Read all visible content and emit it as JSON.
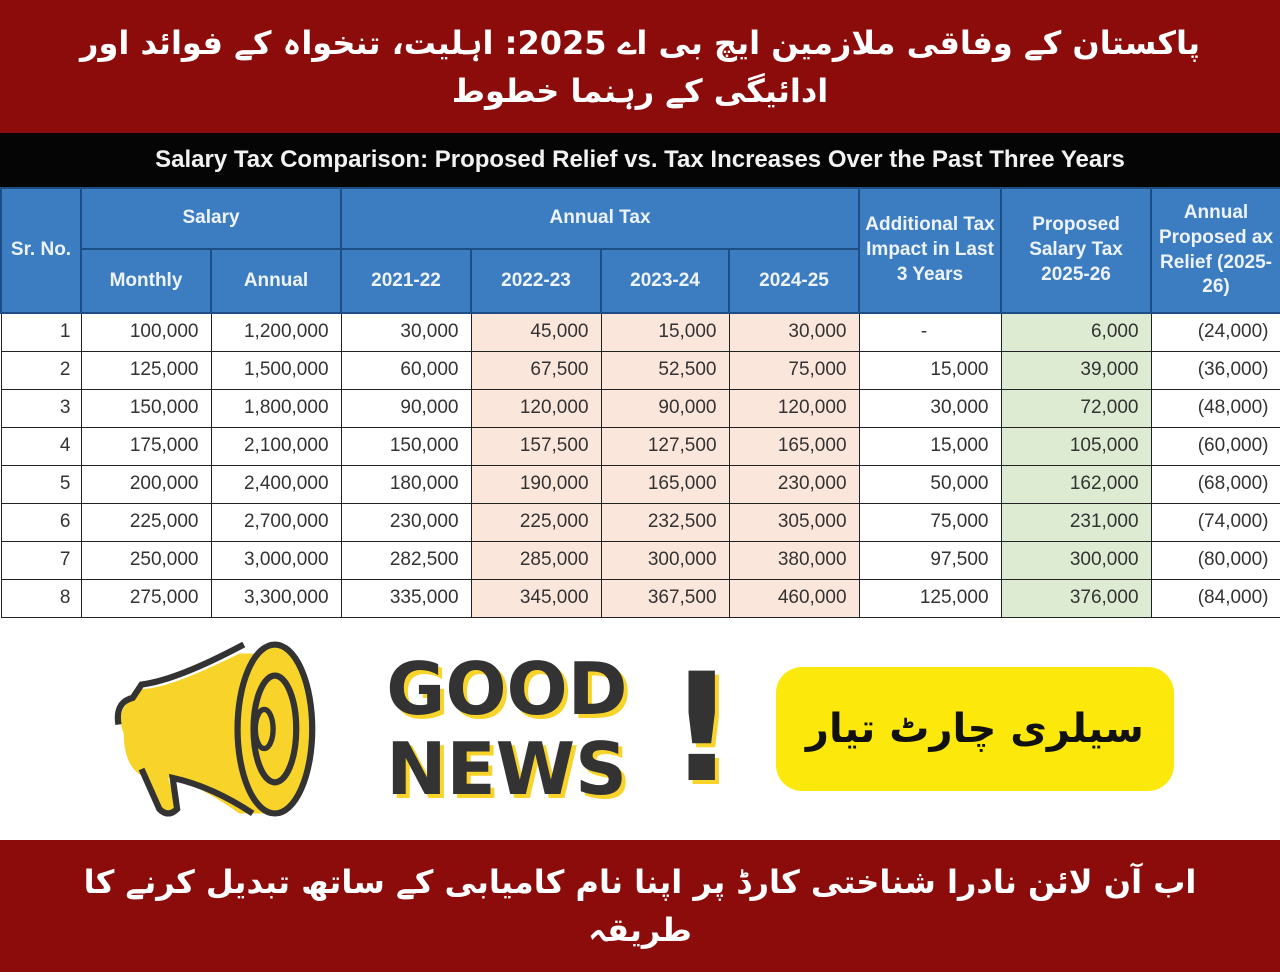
{
  "top_banner": {
    "text": "پاکستان کے وفاقی ملازمین ایچ بی اے 2025: اہلیت، تنخواہ کے فوائد اور ادائیگی کے رہنما خطوط"
  },
  "table": {
    "title": "Salary Tax Comparison: Proposed Relief vs. Tax Increases Over the Past Three Years",
    "headers": {
      "sr": "Sr. No.",
      "salary": "Salary",
      "monthly": "Monthly",
      "annual": "Annual",
      "annual_tax": "Annual Tax",
      "y1": "2021-22",
      "y2": "2022-23",
      "y3": "2023-24",
      "y4": "2024-25",
      "additional": "Additional Tax Impact in Last 3 Years",
      "proposed": "Proposed Salary Tax 2025-26",
      "relief": "Annual Proposed ax Relief (2025-26)"
    },
    "rows": [
      [
        "1",
        "100,000",
        "1,200,000",
        "30,000",
        "45,000",
        "15,000",
        "30,000",
        "-",
        "6,000",
        "(24,000)"
      ],
      [
        "2",
        "125,000",
        "1,500,000",
        "60,000",
        "67,500",
        "52,500",
        "75,000",
        "15,000",
        "39,000",
        "(36,000)"
      ],
      [
        "3",
        "150,000",
        "1,800,000",
        "90,000",
        "120,000",
        "90,000",
        "120,000",
        "30,000",
        "72,000",
        "(48,000)"
      ],
      [
        "4",
        "175,000",
        "2,100,000",
        "150,000",
        "157,500",
        "127,500",
        "165,000",
        "15,000",
        "105,000",
        "(60,000)"
      ],
      [
        "5",
        "200,000",
        "2,400,000",
        "180,000",
        "190,000",
        "165,000",
        "230,000",
        "50,000",
        "162,000",
        "(68,000)"
      ],
      [
        "6",
        "225,000",
        "2,700,000",
        "230,000",
        "225,000",
        "232,500",
        "305,000",
        "75,000",
        "231,000",
        "(74,000)"
      ],
      [
        "7",
        "250,000",
        "3,000,000",
        "282,500",
        "285,000",
        "300,000",
        "380,000",
        "97,500",
        "300,000",
        "(80,000)"
      ],
      [
        "8",
        "275,000",
        "3,300,000",
        "335,000",
        "345,000",
        "367,500",
        "460,000",
        "125,000",
        "376,000",
        "(84,000)"
      ]
    ]
  },
  "overlay": {
    "good": "GOOD",
    "news": "NEWS",
    "exclaim": "!",
    "badge": "سیلری چارٹ تیار",
    "accent": "#f8d42a"
  },
  "bottom_banner": {
    "text": "اب آن لائن نادرا شناختی کارڈ پر اپنا نام کامیابی کے ساتھ تبدیل کرنے کا طریقہ"
  },
  "colors": {
    "banner": "#8c0c0c",
    "header": "#3c7dc2",
    "pink": "#fbe6dc",
    "green": "#dcebd2",
    "badge": "#fce90b"
  }
}
